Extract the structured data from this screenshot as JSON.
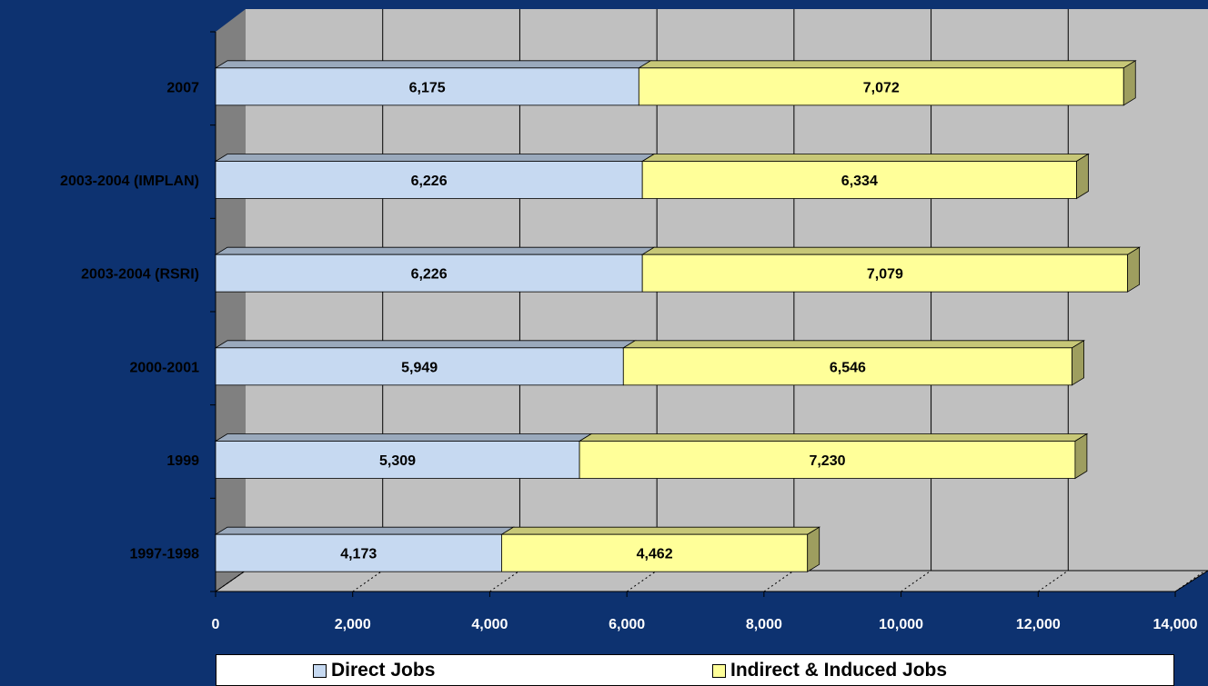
{
  "chart_data": {
    "type": "bar",
    "orientation": "horizontal",
    "stacked": true,
    "categories": [
      "2007",
      "2003-2004 (IMPLAN)",
      "2003-2004 (RSRI)",
      "2000-2001",
      "1999",
      "1997-1998"
    ],
    "series": [
      {
        "name": "Direct Jobs",
        "values": [
          6175,
          6226,
          6226,
          5949,
          5309,
          4173
        ],
        "labels": [
          "6,175",
          "6,226",
          "6,226",
          "5,949",
          "5,309",
          "4,173"
        ],
        "color": "#c6d9f1"
      },
      {
        "name": "Indirect & Induced Jobs",
        "values": [
          7072,
          6334,
          7079,
          6546,
          7230,
          4462
        ],
        "labels": [
          "7,072",
          "6,334",
          "7,079",
          "6,546",
          "7,230",
          "4,462"
        ],
        "color": "#ffff99"
      }
    ],
    "xlim": [
      0,
      14000
    ],
    "x_ticks": [
      0,
      2000,
      4000,
      6000,
      8000,
      10000,
      12000,
      14000
    ],
    "x_tick_labels": [
      "0",
      "2,000",
      "4,000",
      "6,000",
      "8,000",
      "10,000",
      "12,000",
      "14,000"
    ],
    "title": "",
    "xlabel": "",
    "ylabel": "",
    "grid": true,
    "style": "3d",
    "legend_position": "bottom"
  }
}
